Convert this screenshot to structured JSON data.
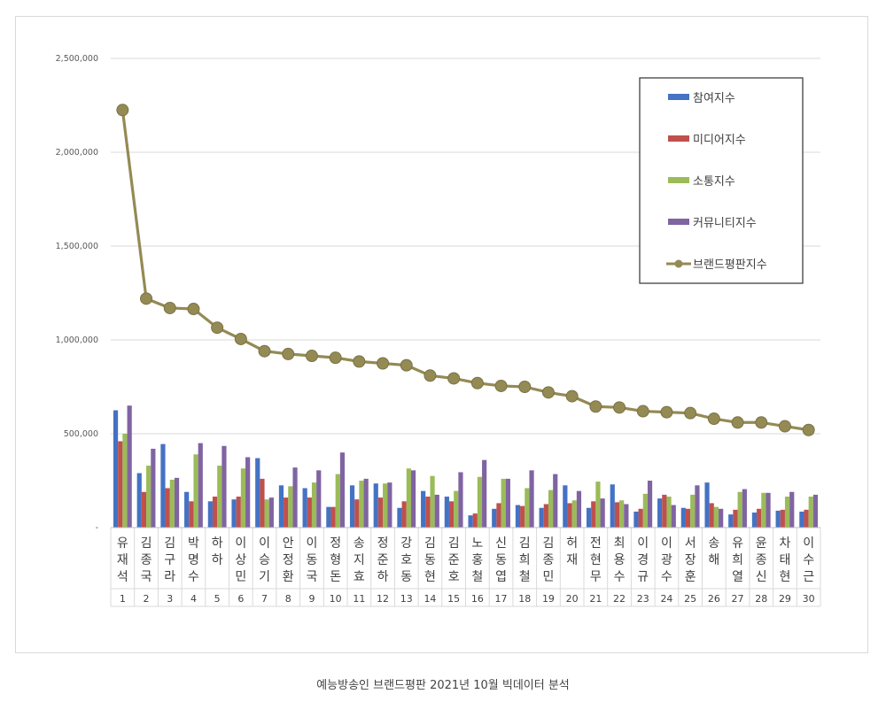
{
  "chart_data": {
    "type": "bar",
    "categories": [
      "유재석",
      "김종국",
      "김구라",
      "박명수",
      "하하",
      "이상민",
      "이승기",
      "안정환",
      "이동국",
      "정형돈",
      "송지효",
      "정준하",
      "강호동",
      "김동현",
      "김준호",
      "노홍철",
      "신동엽",
      "김희철",
      "김종민",
      "허재",
      "전현무",
      "최용수",
      "이경규",
      "이광수",
      "서장훈",
      "송해",
      "유희열",
      "윤종신",
      "차태현",
      "이수근"
    ],
    "ranks": [
      "1",
      "2",
      "3",
      "4",
      "5",
      "6",
      "7",
      "8",
      "9",
      "10",
      "11",
      "12",
      "13",
      "14",
      "15",
      "16",
      "17",
      "18",
      "19",
      "20",
      "21",
      "22",
      "23",
      "24",
      "25",
      "26",
      "27",
      "28",
      "29",
      "30"
    ],
    "series": [
      {
        "name": "참여지수",
        "kind": "bar",
        "color": "#4472c4",
        "values": [
          625000,
          290000,
          445000,
          190000,
          140000,
          150000,
          370000,
          225000,
          210000,
          110000,
          225000,
          235000,
          105000,
          195000,
          165000,
          65000,
          100000,
          120000,
          105000,
          225000,
          105000,
          230000,
          85000,
          155000,
          105000,
          240000,
          70000,
          80000,
          90000,
          85000
        ]
      },
      {
        "name": "미디어지수",
        "kind": "bar",
        "color": "#c0504d",
        "values": [
          460000,
          190000,
          210000,
          140000,
          165000,
          165000,
          260000,
          160000,
          160000,
          110000,
          150000,
          160000,
          140000,
          165000,
          140000,
          75000,
          130000,
          115000,
          125000,
          130000,
          140000,
          135000,
          100000,
          175000,
          100000,
          130000,
          95000,
          100000,
          95000,
          95000
        ]
      },
      {
        "name": "소통지수",
        "kind": "bar",
        "color": "#9bbb59",
        "values": [
          500000,
          330000,
          255000,
          390000,
          330000,
          315000,
          150000,
          220000,
          240000,
          285000,
          250000,
          235000,
          315000,
          275000,
          195000,
          270000,
          260000,
          210000,
          200000,
          145000,
          245000,
          145000,
          180000,
          165000,
          175000,
          110000,
          190000,
          185000,
          165000,
          165000
        ]
      },
      {
        "name": "커뮤니티지수",
        "kind": "bar",
        "color": "#8064a2",
        "values": [
          650000,
          420000,
          265000,
          450000,
          435000,
          375000,
          160000,
          320000,
          305000,
          400000,
          260000,
          240000,
          305000,
          175000,
          295000,
          360000,
          260000,
          305000,
          285000,
          195000,
          155000,
          125000,
          250000,
          120000,
          225000,
          100000,
          205000,
          185000,
          190000,
          175000
        ]
      },
      {
        "name": "브랜드평판지수",
        "kind": "line",
        "color": "#948a54",
        "values": [
          2225000,
          1220000,
          1170000,
          1165000,
          1065000,
          1005000,
          940000,
          925000,
          915000,
          905000,
          885000,
          875000,
          865000,
          810000,
          795000,
          770000,
          755000,
          750000,
          720000,
          700000,
          645000,
          640000,
          620000,
          615000,
          610000,
          580000,
          560000,
          560000,
          540000,
          520000
        ]
      }
    ],
    "y_ticks": [
      "-",
      "500,000",
      "1,000,000",
      "1,500,000",
      "2,000,000",
      "2,500,000"
    ],
    "ylim": [
      0,
      2500000
    ],
    "grid": true,
    "legend_position": "top-right"
  },
  "caption": "예능방송인 브랜드평판   2021년 10월 빅데이터 분석"
}
